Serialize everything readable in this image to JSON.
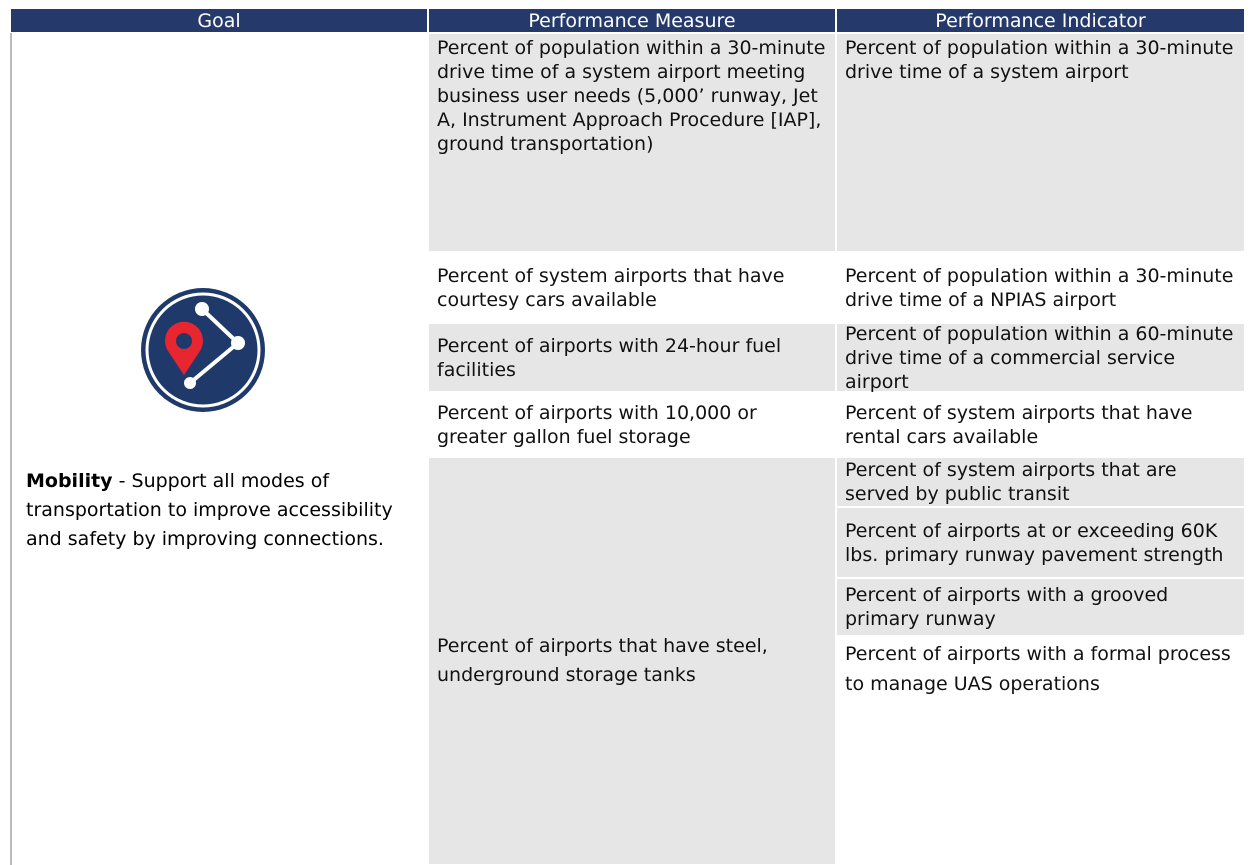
{
  "table": {
    "header": [
      "Goal",
      "Performance Measure",
      "Performance Indicator"
    ],
    "goal": {
      "label": "Mobility",
      "text": " - Support all modes of transportation to improve accessibility and safety by improving connections."
    },
    "measures": [
      "Percent of population within a 30-minute drive time of a system airport meeting business user needs (5,000’ runway, Jet A, Instrument Approach Procedure [IAP], ground transportation)",
      "Percent of system airports that have courtesy cars available",
      "Percent of airports with 24-hour fuel facilities",
      "Percent of airports with 10,000 or greater gallon fuel storage",
      "Percent of airports that have steel, underground storage tanks"
    ],
    "indicators": [
      "Percent of population within a 30-minute drive time of a system airport",
      "Percent of population within a 30-minute drive time of a NPIAS airport",
      "Percent of population within a 60-minute drive time of a commercial service airport",
      "Percent of system airports that have rental cars available",
      "Percent of system airports that are served by public transit",
      "Percent of airports at or exceeding 60K lbs. primary runway pavement strength",
      "Percent of airports with a grooved primary runway",
      "Percent of airports with a formal process to manage UAS operations"
    ]
  }
}
